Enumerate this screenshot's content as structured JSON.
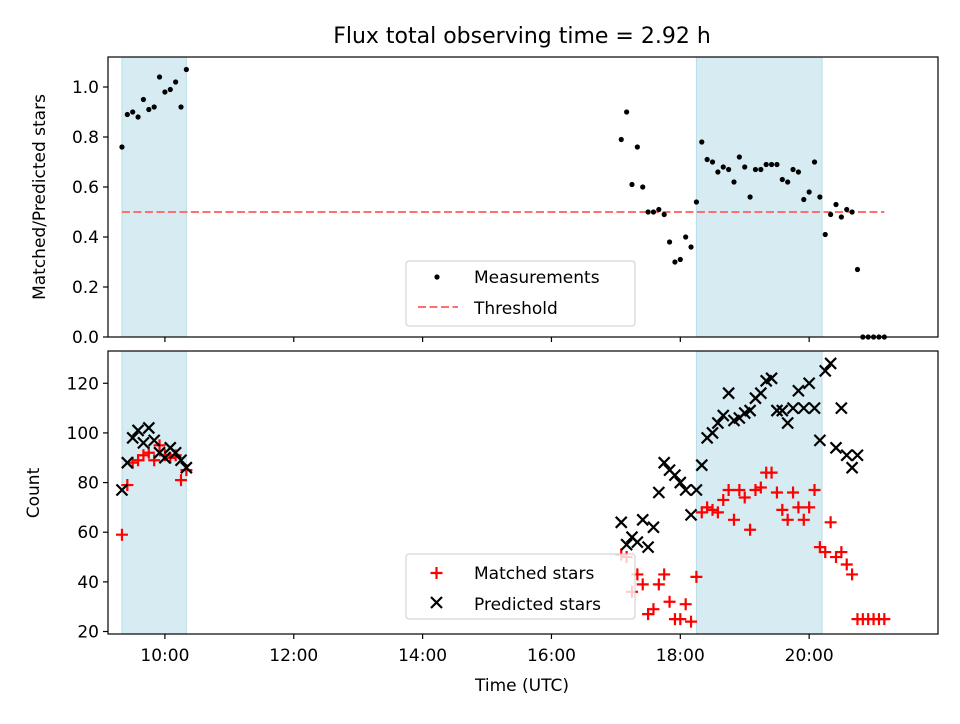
{
  "figure": {
    "title": "Flux total observing time = 2.92 h",
    "xlabel": "Time (UTC)",
    "xticks": [
      "10:00",
      "12:00",
      "14:00",
      "16:00",
      "18:00",
      "20:00"
    ]
  },
  "chart_data": [
    {
      "type": "scatter",
      "ylabel": "Matched/Predicted stars",
      "ylim": [
        0,
        1.12
      ],
      "xlim": [
        "09:07",
        "22:00"
      ],
      "yticks": [
        "0.0",
        "0.2",
        "0.4",
        "0.6",
        "0.8",
        "1.0"
      ],
      "shaded_intervals": [
        [
          "09:20",
          "10:20"
        ],
        [
          "18:15",
          "20:12"
        ]
      ],
      "threshold": {
        "value": 0.5,
        "x_range": [
          "09:20",
          "21:10"
        ]
      },
      "legend": {
        "measurements": "Measurements",
        "threshold": "Threshold",
        "placement": "lower-center"
      },
      "series": [
        {
          "name": "Measurements",
          "points": [
            [
              "09:20",
              0.76
            ],
            [
              "09:25",
              0.89
            ],
            [
              "09:30",
              0.9
            ],
            [
              "09:35",
              0.88
            ],
            [
              "09:40",
              0.95
            ],
            [
              "09:45",
              0.91
            ],
            [
              "09:50",
              0.92
            ],
            [
              "09:55",
              1.04
            ],
            [
              "10:00",
              0.98
            ],
            [
              "10:05",
              0.99
            ],
            [
              "10:10",
              1.02
            ],
            [
              "10:15",
              0.92
            ],
            [
              "10:20",
              1.07
            ],
            [
              "17:05",
              0.79
            ],
            [
              "17:10",
              0.9
            ],
            [
              "17:15",
              0.61
            ],
            [
              "17:20",
              0.76
            ],
            [
              "17:25",
              0.6
            ],
            [
              "17:30",
              0.5
            ],
            [
              "17:35",
              0.5
            ],
            [
              "17:40",
              0.51
            ],
            [
              "17:45",
              0.49
            ],
            [
              "17:50",
              0.38
            ],
            [
              "17:55",
              0.3
            ],
            [
              "18:00",
              0.31
            ],
            [
              "18:05",
              0.4
            ],
            [
              "18:10",
              0.36
            ],
            [
              "18:15",
              0.54
            ],
            [
              "18:20",
              0.78
            ],
            [
              "18:25",
              0.71
            ],
            [
              "18:30",
              0.7
            ],
            [
              "18:35",
              0.66
            ],
            [
              "18:40",
              0.68
            ],
            [
              "18:45",
              0.67
            ],
            [
              "18:50",
              0.62
            ],
            [
              "18:55",
              0.72
            ],
            [
              "19:00",
              0.68
            ],
            [
              "19:05",
              0.56
            ],
            [
              "19:10",
              0.67
            ],
            [
              "19:15",
              0.67
            ],
            [
              "19:20",
              0.69
            ],
            [
              "19:25",
              0.69
            ],
            [
              "19:30",
              0.69
            ],
            [
              "19:35",
              0.63
            ],
            [
              "19:40",
              0.62
            ],
            [
              "19:45",
              0.67
            ],
            [
              "19:50",
              0.66
            ],
            [
              "19:55",
              0.55
            ],
            [
              "20:00",
              0.58
            ],
            [
              "20:05",
              0.7
            ],
            [
              "20:10",
              0.56
            ],
            [
              "20:15",
              0.41
            ],
            [
              "20:20",
              0.49
            ],
            [
              "20:25",
              0.53
            ],
            [
              "20:30",
              0.48
            ],
            [
              "20:35",
              0.51
            ],
            [
              "20:40",
              0.5
            ],
            [
              "20:45",
              0.27
            ],
            [
              "20:50",
              0.0
            ],
            [
              "20:55",
              0.0
            ],
            [
              "21:00",
              0.0
            ],
            [
              "21:05",
              0.0
            ],
            [
              "21:10",
              0.0
            ]
          ]
        }
      ]
    },
    {
      "type": "scatter",
      "ylabel": "Count",
      "ylim": [
        19,
        133
      ],
      "xlim": [
        "09:07",
        "22:00"
      ],
      "yticks": [
        "20",
        "40",
        "60",
        "80",
        "100",
        "120"
      ],
      "shaded_intervals": [
        [
          "09:20",
          "10:20"
        ],
        [
          "18:15",
          "20:12"
        ]
      ],
      "legend": {
        "matched": "Matched stars",
        "predicted": "Predicted stars",
        "placement": "lower-center"
      },
      "series": [
        {
          "name": "Matched stars",
          "color": "#ff0000",
          "marker": "plus",
          "points": [
            [
              "09:20",
              59
            ],
            [
              "09:25",
              79
            ],
            [
              "09:30",
              88
            ],
            [
              "09:35",
              89
            ],
            [
              "09:40",
              91
            ],
            [
              "09:45",
              92
            ],
            [
              "09:50",
              89
            ],
            [
              "09:55",
              95
            ],
            [
              "10:00",
              91
            ],
            [
              "10:05",
              90
            ],
            [
              "10:10",
              91
            ],
            [
              "10:15",
              81
            ],
            [
              "10:20",
              85
            ],
            [
              "17:05",
              51
            ],
            [
              "17:10",
              50
            ],
            [
              "17:15",
              36
            ],
            [
              "17:20",
              43
            ],
            [
              "17:25",
              39
            ],
            [
              "17:30",
              27
            ],
            [
              "17:35",
              29
            ],
            [
              "17:40",
              39
            ],
            [
              "17:45",
              43
            ],
            [
              "17:50",
              32
            ],
            [
              "17:55",
              25
            ],
            [
              "18:00",
              25
            ],
            [
              "18:05",
              31
            ],
            [
              "18:10",
              24
            ],
            [
              "18:15",
              42
            ],
            [
              "18:20",
              68
            ],
            [
              "18:25",
              70
            ],
            [
              "18:30",
              69
            ],
            [
              "18:35",
              68
            ],
            [
              "18:40",
              73
            ],
            [
              "18:45",
              77
            ],
            [
              "18:50",
              65
            ],
            [
              "18:55",
              77
            ],
            [
              "19:00",
              74
            ],
            [
              "19:05",
              61
            ],
            [
              "19:10",
              77
            ],
            [
              "19:15",
              78
            ],
            [
              "19:20",
              84
            ],
            [
              "19:25",
              84
            ],
            [
              "19:30",
              76
            ],
            [
              "19:35",
              69
            ],
            [
              "19:40",
              65
            ],
            [
              "19:45",
              76
            ],
            [
              "19:50",
              70
            ],
            [
              "19:55",
              65
            ],
            [
              "20:00",
              70
            ],
            [
              "20:05",
              77
            ],
            [
              "20:10",
              54
            ],
            [
              "20:15",
              52
            ],
            [
              "20:20",
              64
            ],
            [
              "20:25",
              50
            ],
            [
              "20:30",
              52
            ],
            [
              "20:35",
              47
            ],
            [
              "20:40",
              43
            ],
            [
              "20:45",
              25
            ],
            [
              "20:50",
              25
            ],
            [
              "20:55",
              25
            ],
            [
              "21:00",
              25
            ],
            [
              "21:05",
              25
            ],
            [
              "21:10",
              25
            ]
          ]
        },
        {
          "name": "Predicted stars",
          "color": "#000000",
          "marker": "x",
          "points": [
            [
              "09:20",
              77
            ],
            [
              "09:25",
              88
            ],
            [
              "09:30",
              98
            ],
            [
              "09:35",
              101
            ],
            [
              "09:40",
              96
            ],
            [
              "09:45",
              102
            ],
            [
              "09:50",
              97
            ],
            [
              "09:55",
              92
            ],
            [
              "10:00",
              90
            ],
            [
              "10:05",
              94
            ],
            [
              "10:10",
              92
            ],
            [
              "10:15",
              89
            ],
            [
              "10:20",
              86
            ],
            [
              "17:05",
              64
            ],
            [
              "17:10",
              55
            ],
            [
              "17:15",
              58
            ],
            [
              "17:20",
              56
            ],
            [
              "17:25",
              65
            ],
            [
              "17:30",
              54
            ],
            [
              "17:35",
              62
            ],
            [
              "17:40",
              76
            ],
            [
              "17:45",
              88
            ],
            [
              "17:50",
              85
            ],
            [
              "17:55",
              83
            ],
            [
              "18:00",
              80
            ],
            [
              "18:05",
              77
            ],
            [
              "18:10",
              67
            ],
            [
              "18:15",
              77
            ],
            [
              "18:20",
              87
            ],
            [
              "18:25",
              98
            ],
            [
              "18:30",
              100
            ],
            [
              "18:35",
              104
            ],
            [
              "18:40",
              107
            ],
            [
              "18:45",
              116
            ],
            [
              "18:50",
              105
            ],
            [
              "18:55",
              106
            ],
            [
              "19:00",
              108
            ],
            [
              "19:05",
              109
            ],
            [
              "19:10",
              114
            ],
            [
              "19:15",
              116
            ],
            [
              "19:20",
              121
            ],
            [
              "19:25",
              122
            ],
            [
              "19:30",
              109
            ],
            [
              "19:35",
              109
            ],
            [
              "19:40",
              104
            ],
            [
              "19:45",
              110
            ],
            [
              "19:50",
              117
            ],
            [
              "19:55",
              110
            ],
            [
              "20:00",
              120
            ],
            [
              "20:05",
              110
            ],
            [
              "20:10",
              97
            ],
            [
              "20:15",
              125
            ],
            [
              "20:20",
              128
            ],
            [
              "20:25",
              94
            ],
            [
              "20:30",
              110
            ],
            [
              "20:35",
              91
            ],
            [
              "20:40",
              86
            ],
            [
              "20:45",
              91
            ]
          ]
        }
      ]
    }
  ]
}
